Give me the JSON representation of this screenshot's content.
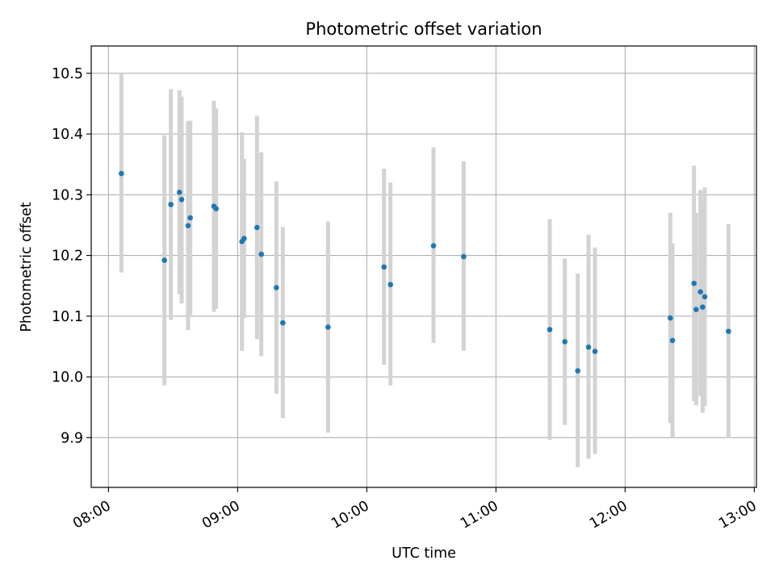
{
  "chart_data": {
    "type": "scatter",
    "title": "Photometric offset variation",
    "xlabel": "UTC time",
    "ylabel": "Photometric offset",
    "x_type": "time",
    "xlim": [
      "07:52",
      "13:01"
    ],
    "ylim": [
      9.818,
      10.545
    ],
    "x_ticks": [
      "08:00",
      "09:00",
      "10:00",
      "11:00",
      "12:00",
      "13:00"
    ],
    "y_ticks": [
      "9.9",
      "10.0",
      "10.1",
      "10.2",
      "10.3",
      "10.4",
      "10.5"
    ],
    "grid": true,
    "marker_color": "#1f77b4",
    "errorbar_color": "#d3d3d3",
    "points": [
      {
        "x": "08:06",
        "y": 10.335,
        "lo": 10.172,
        "hi": 10.5
      },
      {
        "x": "08:26",
        "y": 10.192,
        "lo": 9.986,
        "hi": 10.398
      },
      {
        "x": "08:29",
        "y": 10.284,
        "lo": 10.094,
        "hi": 10.474
      },
      {
        "x": "08:33",
        "y": 10.304,
        "lo": 10.136,
        "hi": 10.472
      },
      {
        "x": "08:34",
        "y": 10.292,
        "lo": 10.121,
        "hi": 10.462
      },
      {
        "x": "08:37",
        "y": 10.249,
        "lo": 10.077,
        "hi": 10.421
      },
      {
        "x": "08:38",
        "y": 10.262,
        "lo": 10.102,
        "hi": 10.422
      },
      {
        "x": "08:49",
        "y": 10.281,
        "lo": 10.107,
        "hi": 10.455
      },
      {
        "x": "08:50",
        "y": 10.277,
        "lo": 10.112,
        "hi": 10.442
      },
      {
        "x": "09:02",
        "y": 10.223,
        "lo": 10.043,
        "hi": 10.403
      },
      {
        "x": "09:03",
        "y": 10.228,
        "lo": 10.097,
        "hi": 10.359
      },
      {
        "x": "09:09",
        "y": 10.246,
        "lo": 10.062,
        "hi": 10.43
      },
      {
        "x": "09:11",
        "y": 10.202,
        "lo": 10.034,
        "hi": 10.37
      },
      {
        "x": "09:18",
        "y": 10.147,
        "lo": 9.972,
        "hi": 10.322
      },
      {
        "x": "09:21",
        "y": 10.089,
        "lo": 9.932,
        "hi": 10.247
      },
      {
        "x": "09:42",
        "y": 10.082,
        "lo": 9.908,
        "hi": 10.256
      },
      {
        "x": "10:08",
        "y": 10.181,
        "lo": 10.02,
        "hi": 10.343
      },
      {
        "x": "10:11",
        "y": 10.152,
        "lo": 9.986,
        "hi": 10.32
      },
      {
        "x": "10:31",
        "y": 10.216,
        "lo": 10.056,
        "hi": 10.378
      },
      {
        "x": "10:45",
        "y": 10.198,
        "lo": 10.043,
        "hi": 10.355
      },
      {
        "x": "11:25",
        "y": 10.078,
        "lo": 9.896,
        "hi": 10.26
      },
      {
        "x": "11:32",
        "y": 10.058,
        "lo": 9.921,
        "hi": 10.195
      },
      {
        "x": "11:38",
        "y": 10.01,
        "lo": 9.851,
        "hi": 10.17
      },
      {
        "x": "11:43",
        "y": 10.049,
        "lo": 9.865,
        "hi": 10.234
      },
      {
        "x": "11:46",
        "y": 10.042,
        "lo": 9.873,
        "hi": 10.213
      },
      {
        "x": "12:21",
        "y": 10.097,
        "lo": 9.924,
        "hi": 10.27
      },
      {
        "x": "12:22",
        "y": 10.06,
        "lo": 9.9,
        "hi": 10.22
      },
      {
        "x": "12:32",
        "y": 10.154,
        "lo": 9.96,
        "hi": 10.348
      },
      {
        "x": "12:33",
        "y": 10.111,
        "lo": 9.953,
        "hi": 10.27
      },
      {
        "x": "12:35",
        "y": 10.14,
        "lo": 9.968,
        "hi": 10.308
      },
      {
        "x": "12:36",
        "y": 10.115,
        "lo": 9.941,
        "hi": 10.289
      },
      {
        "x": "12:37",
        "y": 10.132,
        "lo": 9.952,
        "hi": 10.312
      },
      {
        "x": "12:48",
        "y": 10.075,
        "lo": 9.899,
        "hi": 10.252
      }
    ]
  }
}
